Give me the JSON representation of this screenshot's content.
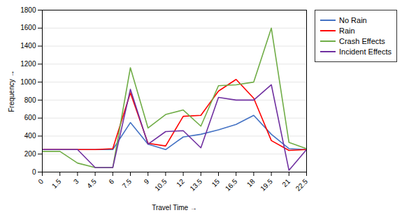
{
  "chart_data": {
    "type": "line",
    "xlabel": "Travel Time",
    "ylabel": "Frequency",
    "x": [
      0,
      1.5,
      3,
      4.5,
      6,
      7.5,
      9,
      10.5,
      12,
      13.5,
      15,
      16.5,
      18,
      19.5,
      21,
      22.5
    ],
    "series": [
      {
        "name": "No Rain",
        "color": "#4472C4",
        "values": [
          250,
          250,
          250,
          250,
          250,
          550,
          310,
          250,
          390,
          420,
          470,
          530,
          630,
          420,
          260,
          250
        ]
      },
      {
        "name": "Rain",
        "color": "#FF0000",
        "values": [
          250,
          250,
          250,
          250,
          260,
          880,
          320,
          290,
          620,
          630,
          900,
          1030,
          820,
          350,
          240,
          250
        ]
      },
      {
        "name": "Crash Effects",
        "color": "#70AD47",
        "values": [
          230,
          230,
          100,
          50,
          50,
          1160,
          490,
          640,
          690,
          510,
          960,
          970,
          1000,
          1600,
          330,
          260
        ]
      },
      {
        "name": "Incident Effects",
        "color": "#7030A0",
        "values": [
          250,
          250,
          250,
          50,
          50,
          920,
          310,
          450,
          460,
          270,
          830,
          800,
          800,
          970,
          20,
          250
        ]
      }
    ],
    "xlim": [
      0,
      22.5
    ],
    "xticks": [
      0,
      1.5,
      3,
      4.5,
      6,
      7.5,
      9,
      10.5,
      12,
      13.5,
      15,
      16.5,
      18,
      19.5,
      21,
      22.5
    ],
    "ylim": [
      0,
      1800
    ],
    "yticks": [
      0,
      200,
      400,
      600,
      800,
      1000,
      1200,
      1400,
      1600,
      1800
    ],
    "grid": "y",
    "legend": "right"
  }
}
